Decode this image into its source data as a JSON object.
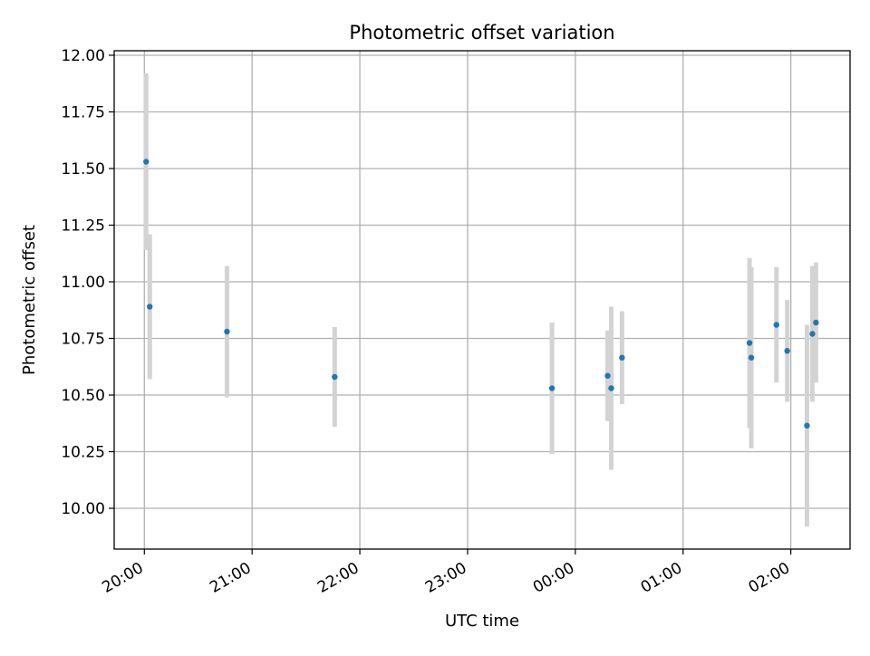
{
  "chart_data": {
    "type": "scatter",
    "title": "Photometric offset variation",
    "xlabel": "UTC time",
    "ylabel": "Photometric offset",
    "x_tick_labels": [
      "20:00",
      "21:00",
      "22:00",
      "23:00",
      "00:00",
      "01:00",
      "02:00"
    ],
    "x_tick_hours": [
      20,
      21,
      22,
      23,
      24,
      25,
      26
    ],
    "xlim_hours": [
      19.72,
      26.55
    ],
    "y_ticks": [
      "10.00",
      "10.25",
      "10.50",
      "10.75",
      "11.00",
      "11.25",
      "11.50",
      "11.75",
      "12.00"
    ],
    "ylim": [
      9.82,
      12.02
    ],
    "grid": true,
    "marker_color": "#1f77b4",
    "errorbar_color": "#d3d3d3",
    "points": [
      {
        "x": "20:01",
        "y": 11.53,
        "yerr": 0.39
      },
      {
        "x": "20:03",
        "y": 10.89,
        "yerr": 0.32
      },
      {
        "x": "20:46",
        "y": 10.78,
        "yerr": 0.29
      },
      {
        "x": "21:46",
        "y": 10.58,
        "yerr": 0.22
      },
      {
        "x": "23:47",
        "y": 10.53,
        "yerr": 0.29
      },
      {
        "x": "00:18",
        "y": 10.585,
        "yerr": 0.2
      },
      {
        "x": "00:20",
        "y": 10.53,
        "yerr": 0.36
      },
      {
        "x": "00:26",
        "y": 10.665,
        "yerr": 0.205
      },
      {
        "x": "01:37",
        "y": 10.73,
        "yerr": 0.375
      },
      {
        "x": "01:38",
        "y": 10.665,
        "yerr": 0.4
      },
      {
        "x": "01:52",
        "y": 10.81,
        "yerr": 0.255
      },
      {
        "x": "01:58",
        "y": 10.695,
        "yerr": 0.225
      },
      {
        "x": "02:09",
        "y": 10.365,
        "yerr": 0.445
      },
      {
        "x": "02:12",
        "y": 10.77,
        "yerr": 0.3
      },
      {
        "x": "02:14",
        "y": 10.82,
        "yerr": 0.265
      }
    ]
  }
}
